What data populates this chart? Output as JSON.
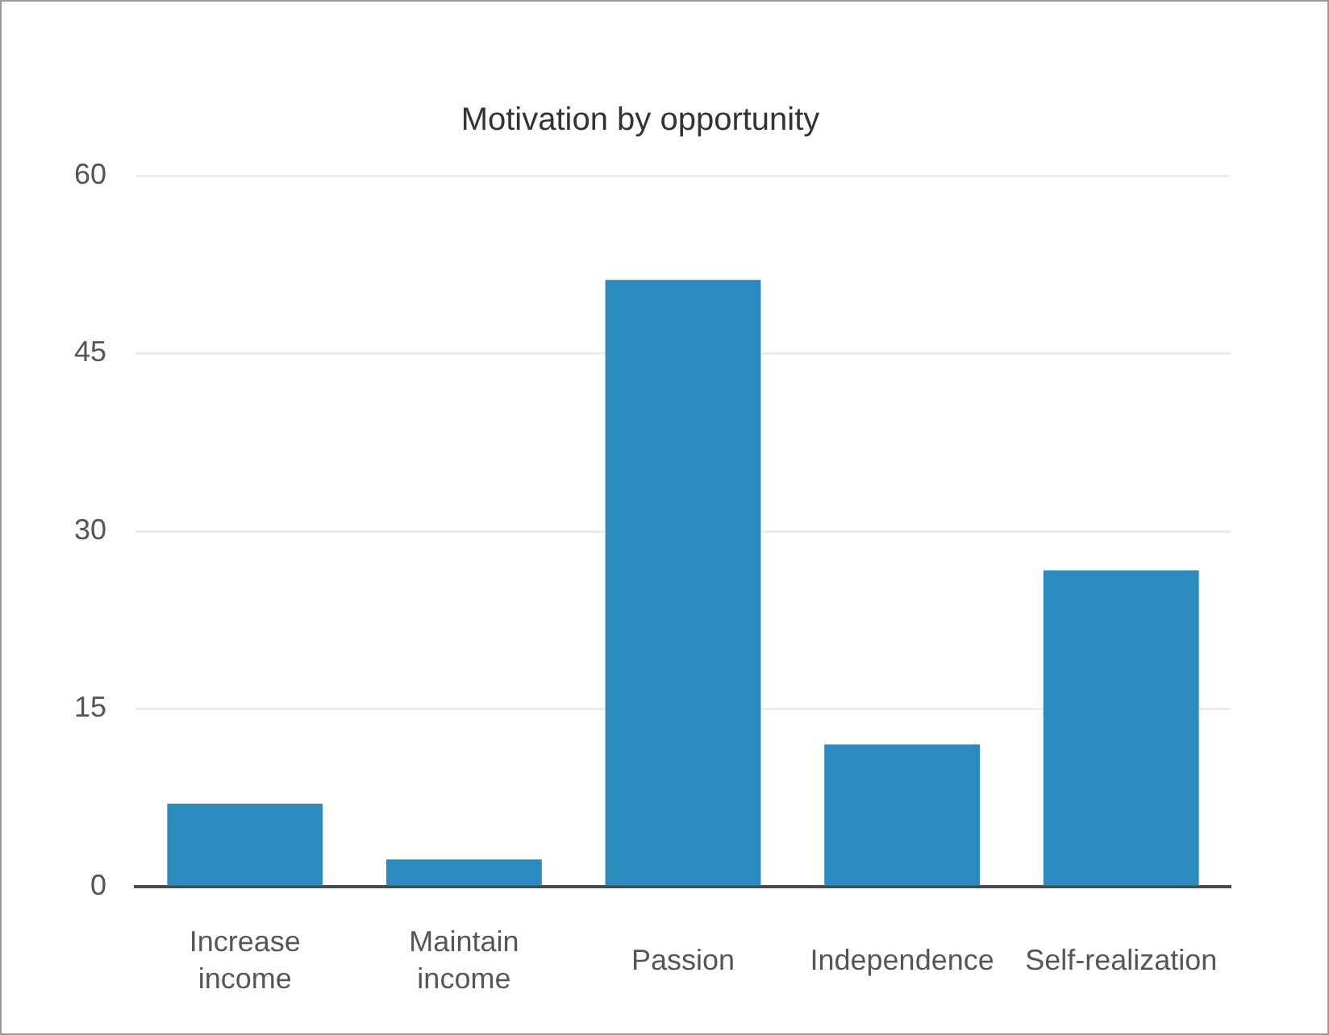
{
  "chart_data": {
    "type": "bar",
    "title": "Motivation by opportunity",
    "categories": [
      "Increase income",
      "Maintain income",
      "Passion",
      "Independence",
      "Self-realization"
    ],
    "values": [
      7,
      2.3,
      51.2,
      12,
      26.7
    ],
    "color": "#2b8bbf",
    "ylim": [
      0,
      60
    ],
    "yticks": [
      0,
      15,
      30,
      45,
      60
    ],
    "grid": "y"
  }
}
